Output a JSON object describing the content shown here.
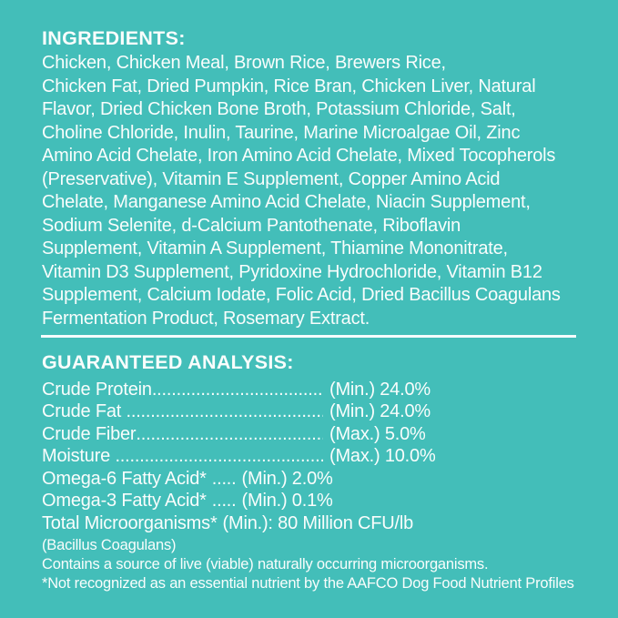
{
  "colors": {
    "background": "#43BEB9",
    "text": "#F9FDFC",
    "divider": "#FFFFFF"
  },
  "ingredients": {
    "heading": "INGREDIENTS:",
    "lines": [
      "Chicken, Chicken Meal, Brown Rice, Brewers Rice,",
      "Chicken Fat, Dried Pumpkin, Rice Bran, Chicken Liver, Natural",
      "Flavor, Dried Chicken Bone Broth, Potassium Chloride, Salt,",
      "Choline Chloride, Inulin, Taurine, Marine Microalgae Oil, Zinc",
      "Amino Acid Chelate, Iron Amino Acid Chelate, Mixed Tocopherols",
      "(Preservative), Vitamin E Supplement, Copper Amino Acid",
      "Chelate, Manganese Amino Acid Chelate, Niacin Supplement,",
      "Sodium Selenite, d-Calcium Pantothenate, Riboflavin",
      "Supplement, Vitamin A Supplement, Thiamine Mononitrate,",
      "Vitamin D3 Supplement, Pyridoxine Hydrochloride, Vitamin B12",
      "Supplement, Calcium Iodate, Folic Acid, Dried Bacillus Coagulans",
      "Fermentation Product, Rosemary Extract."
    ]
  },
  "guaranteed_analysis": {
    "heading": "GUARANTEED ANALYSIS:",
    "rows": [
      {
        "label": "Crude Protein",
        "leader": "fill",
        "value": "(Min.) 24.0%"
      },
      {
        "label": "Crude Fat ",
        "leader": "fill",
        "value": "(Min.) 24.0%"
      },
      {
        "label": "Crude Fiber",
        "leader": "fill",
        "value": "(Max.) 5.0%"
      },
      {
        "label": "Moisture ",
        "leader": "fill",
        "value": "(Max.) 10.0%"
      },
      {
        "label": "Omega-6 Fatty Acid*",
        "leader": ".....",
        "value": "(Min.) 2.0%"
      },
      {
        "label": "Omega-3 Fatty Acid*",
        "leader": ".....",
        "value": "(Min.) 0.1%"
      },
      {
        "label": "Total Microorganisms*",
        "leader": "",
        "value": "(Min.): 80 Million CFU/lb"
      }
    ],
    "footnotes": [
      "(Bacillus Coagulans)",
      "Contains a source of live (viable) naturally occurring microorganisms.",
      "*Not recognized as an essential nutrient by the AAFCO Dog Food Nutrient Profiles"
    ]
  }
}
